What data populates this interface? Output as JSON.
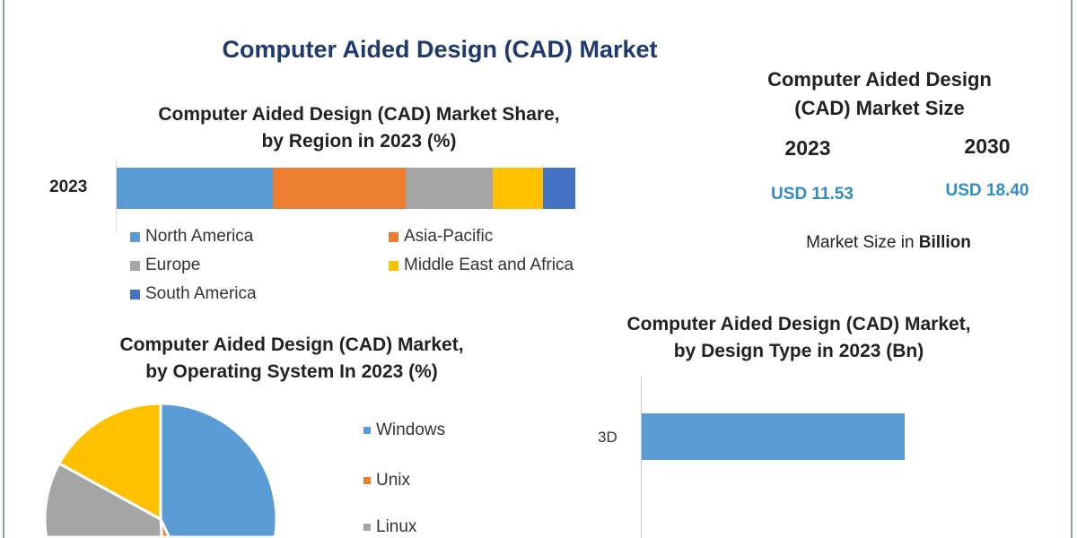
{
  "main_title": "Computer Aided Design (CAD) Market",
  "market_size": {
    "title_line1": "Computer Aided Design",
    "title_line2": "(CAD) Market Size",
    "years": [
      "2023",
      "2030"
    ],
    "values": [
      "USD 11.53",
      "USD 18.40"
    ],
    "note_prefix": "Market Size in ",
    "note_bold": "Billion",
    "accent_color": "#2f8dc8"
  },
  "chart_data": [
    {
      "type": "bar",
      "orientation": "horizontal-stacked",
      "title_line1": "Computer Aided Design (CAD) Market Share,",
      "title_line2": "by Region in 2023 (%)",
      "categories": [
        "2023"
      ],
      "series": [
        {
          "name": "North America",
          "values": [
            34
          ],
          "color": "#5b9bd5"
        },
        {
          "name": "Asia-Pacific",
          "values": [
            29
          ],
          "color": "#ed7d31"
        },
        {
          "name": "Europe",
          "values": [
            19
          ],
          "color": "#a5a5a5"
        },
        {
          "name": "Middle East and Africa",
          "values": [
            11
          ],
          "color": "#ffc000"
        },
        {
          "name": "South America",
          "values": [
            7
          ],
          "color": "#4472c4"
        }
      ],
      "legend": "bottom"
    },
    {
      "type": "pie",
      "title_line1": "Computer Aided Design (CAD) Market,",
      "title_line2": "by Operating System In 2023 (%)",
      "slices": [
        {
          "name": "Windows",
          "value": 43,
          "color": "#5b9bd5"
        },
        {
          "name": "Unix",
          "value": 6,
          "color": "#ed7d31"
        },
        {
          "name": "Linux",
          "value": 34,
          "color": "#a5a5a5"
        },
        {
          "value": 17,
          "color": "#ffc000"
        }
      ],
      "legend": "right"
    },
    {
      "type": "bar",
      "orientation": "horizontal",
      "title_line1": "Computer Aided Design (CAD) Market,",
      "title_line2": "by Design Type in 2023 (Bn)",
      "categories": [
        "3D"
      ],
      "values": [
        0.63
      ],
      "xlim": [
        0,
        1
      ],
      "color": "#5b9bd5"
    }
  ]
}
